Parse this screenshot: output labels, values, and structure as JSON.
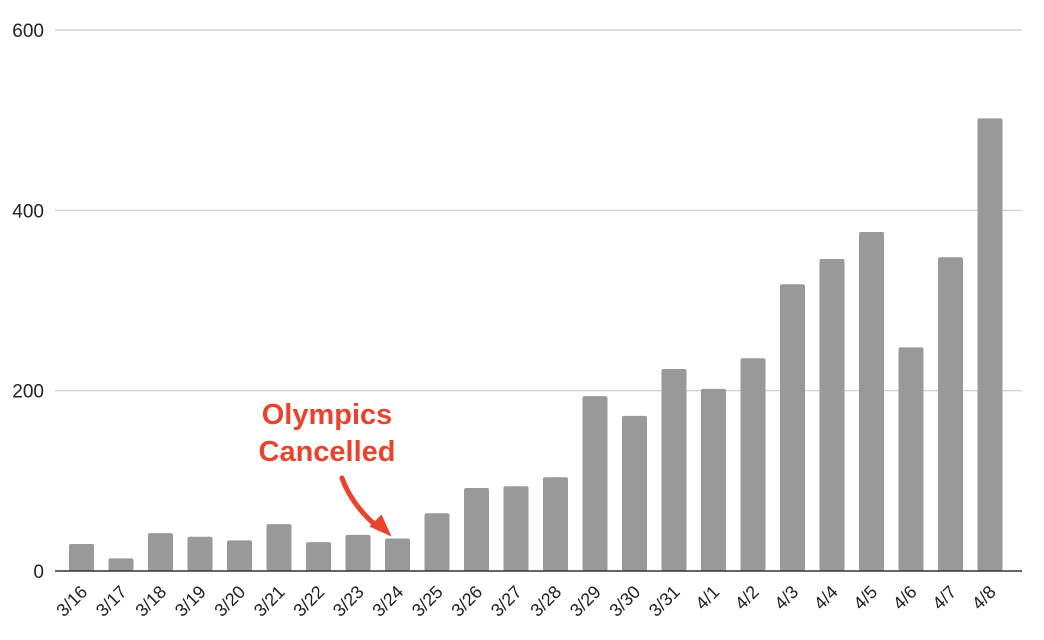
{
  "chart_data": {
    "type": "bar",
    "title": "",
    "xlabel": "",
    "ylabel": "",
    "categories": [
      "3/16",
      "3/17",
      "3/18",
      "3/19",
      "3/20",
      "3/21",
      "3/22",
      "3/23",
      "3/24",
      "3/25",
      "3/26",
      "3/27",
      "3/28",
      "3/29",
      "3/30",
      "3/31",
      "4/1",
      "4/2",
      "4/3",
      "4/4",
      "4/5",
      "4/6",
      "4/7",
      "4/8"
    ],
    "values": [
      30,
      14,
      42,
      38,
      34,
      52,
      32,
      40,
      36,
      64,
      92,
      94,
      104,
      194,
      172,
      224,
      202,
      236,
      318,
      346,
      376,
      248,
      348,
      502
    ],
    "ylim": [
      0,
      600
    ],
    "yticks": [
      0,
      200,
      400,
      600
    ],
    "grid": true,
    "legend": "none",
    "bar_color": "#999999",
    "annotation": {
      "lines": [
        "Olympics",
        "Cancelled"
      ],
      "target_category": "3/24",
      "color": "#e8432d"
    }
  }
}
